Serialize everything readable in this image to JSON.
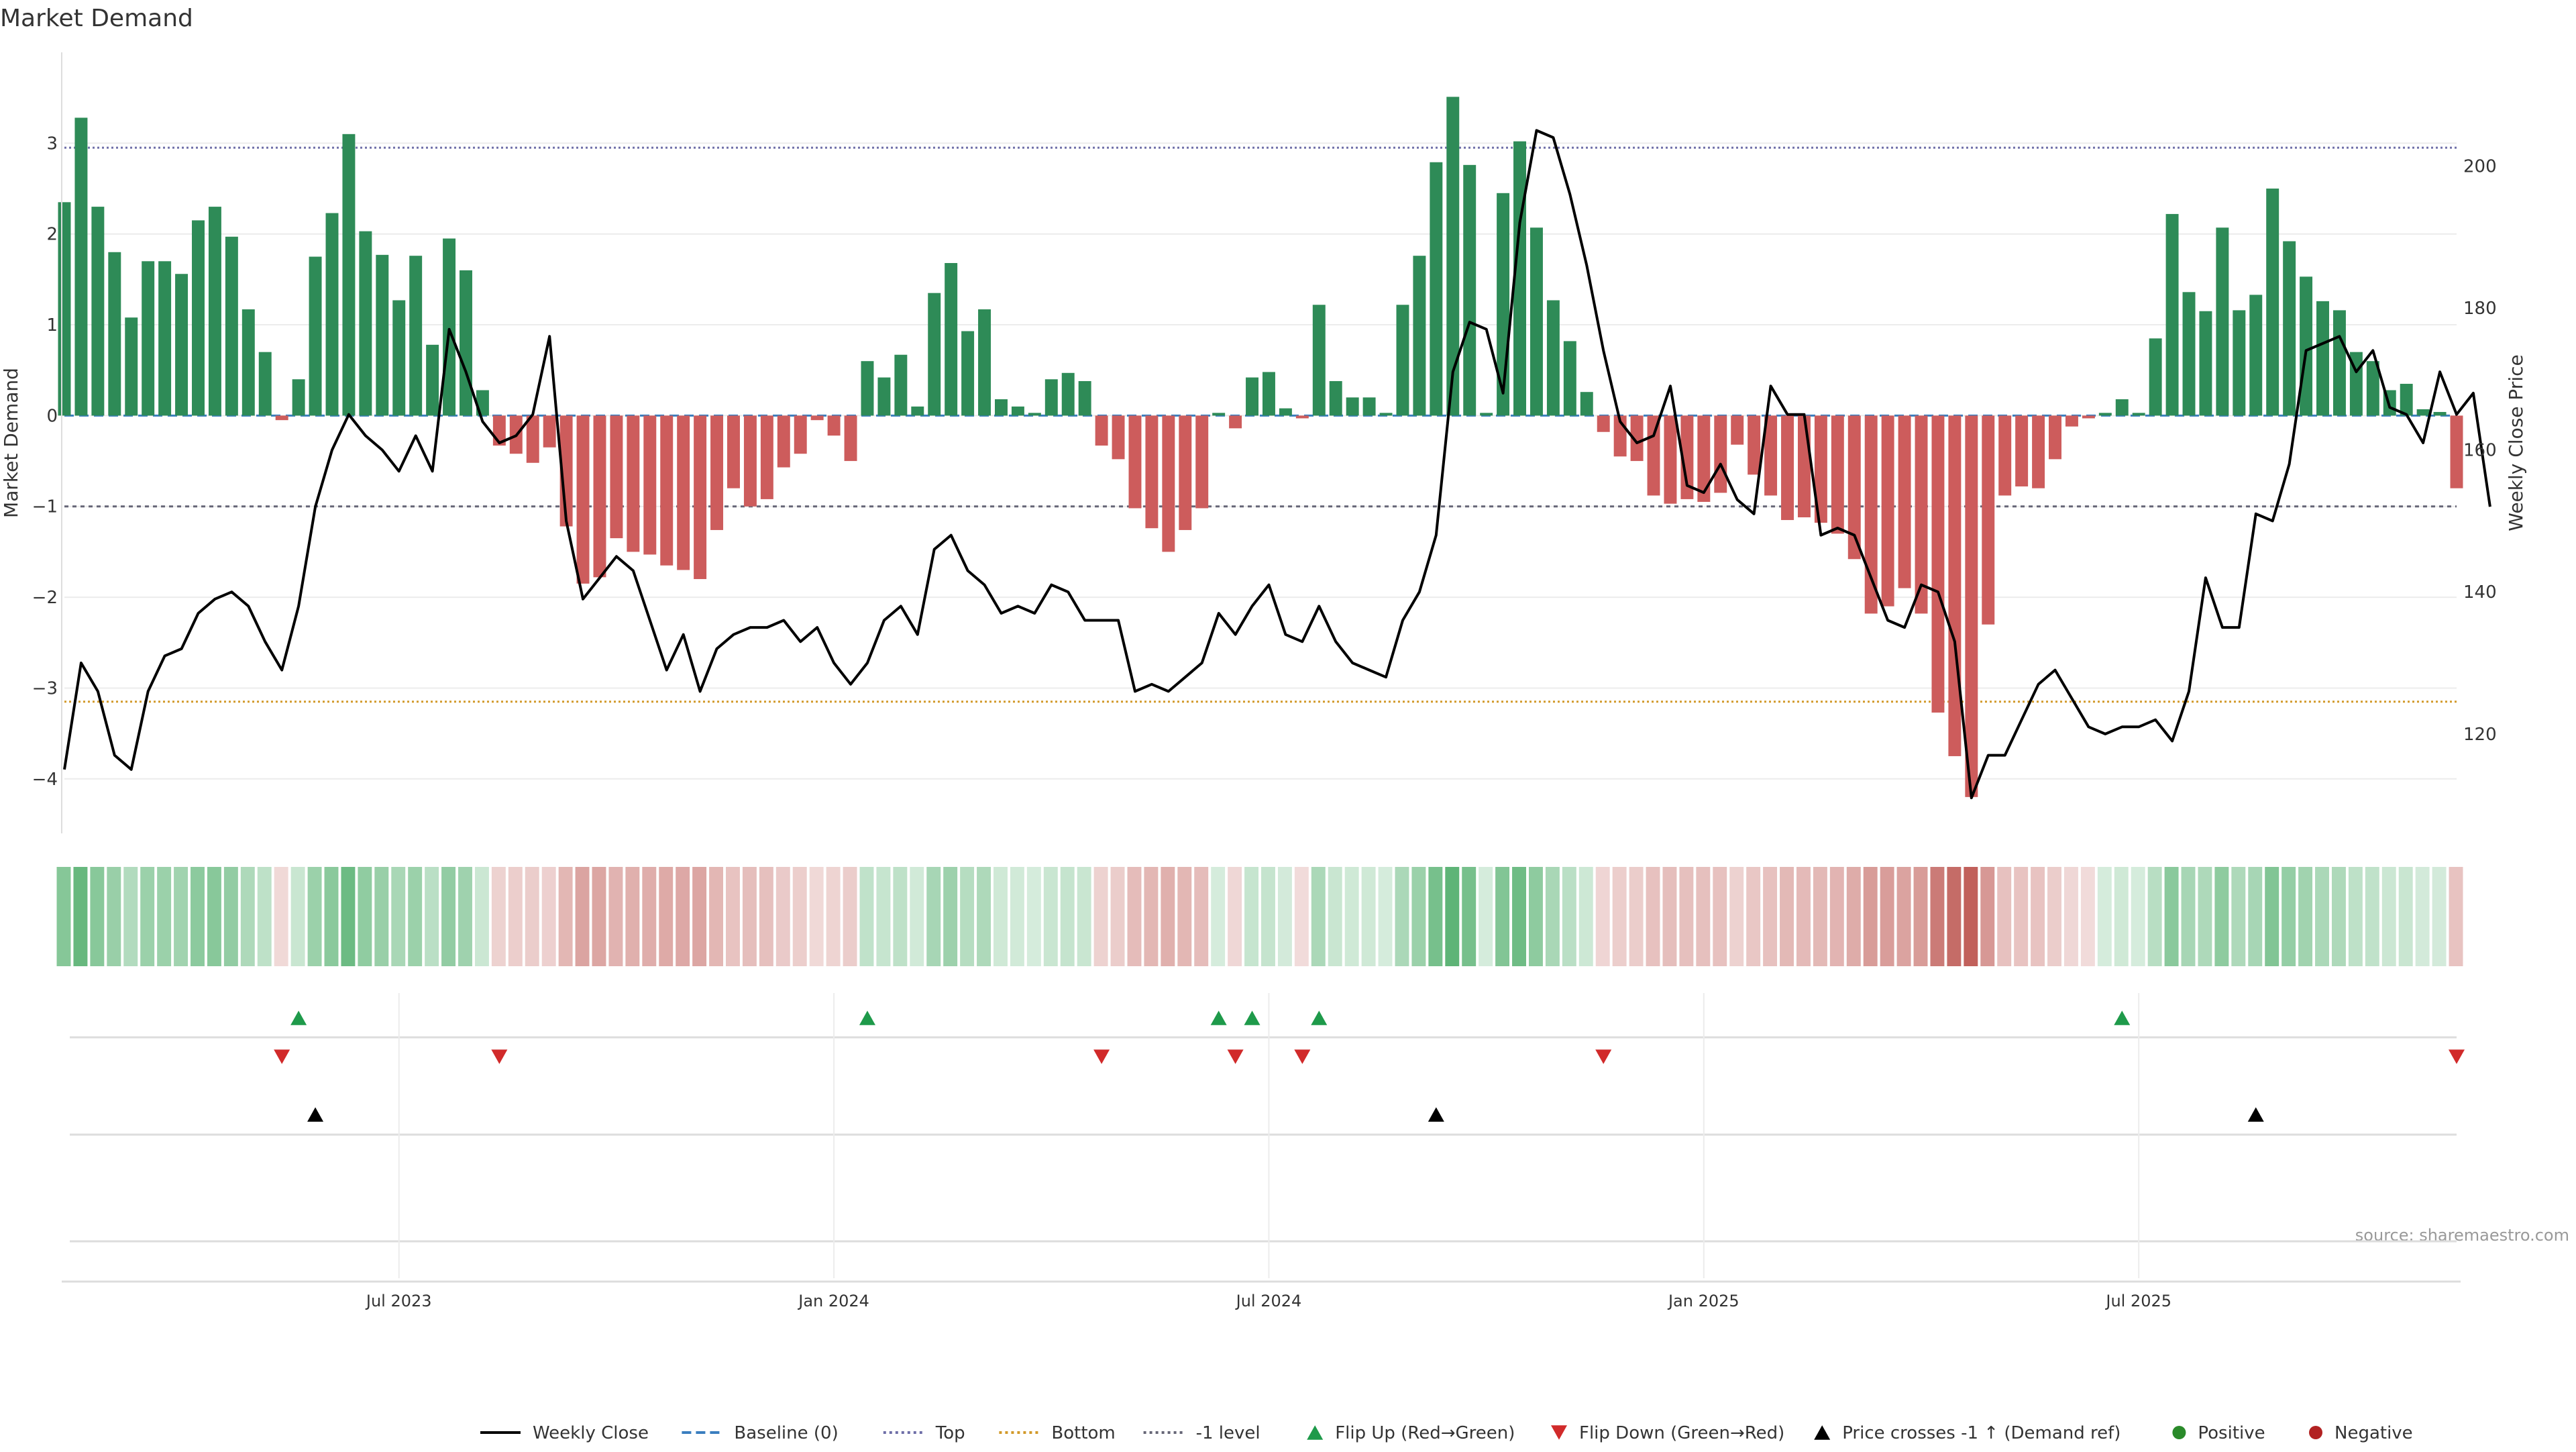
{
  "chart_data": {
    "type": "bar",
    "title": "Market Demand",
    "ylabel": "Market Demand",
    "y2label": "Weekly Close Price",
    "ylim": [
      -4.6,
      4.0
    ],
    "y2lim": [
      106,
      216
    ],
    "yticks": [
      3,
      2,
      1,
      0,
      -1,
      -2,
      -3,
      -4
    ],
    "yticklabels": [
      "3",
      "2",
      "1",
      "0",
      "−1",
      "−2",
      "−3",
      "−4"
    ],
    "y2ticks": [
      200,
      180,
      160,
      140,
      120
    ],
    "y2ticklabels": [
      "200",
      "180",
      "160",
      "140",
      "120"
    ],
    "xticks": [
      20,
      46,
      72,
      98,
      124
    ],
    "xticklabels": [
      "Jul 2023",
      "Jan 2024",
      "Jul 2024",
      "Jan 2025",
      "Jul 2025"
    ],
    "reference_lines": {
      "top": 2.95,
      "bottom": -3.15,
      "minus_one": -1.0,
      "baseline": 0
    },
    "demand": [
      2.35,
      3.28,
      2.3,
      1.8,
      1.08,
      1.7,
      1.7,
      1.56,
      2.15,
      2.3,
      1.97,
      1.17,
      0.7,
      -0.05,
      0.4,
      1.75,
      2.23,
      3.1,
      2.03,
      1.77,
      1.27,
      1.76,
      0.78,
      1.95,
      1.6,
      0.28,
      -0.33,
      -0.42,
      -0.52,
      -0.35,
      -1.22,
      -1.85,
      -1.78,
      -1.35,
      -1.5,
      -1.53,
      -1.65,
      -1.7,
      -1.8,
      -1.26,
      -0.8,
      -1.0,
      -0.92,
      -0.57,
      -0.42,
      -0.05,
      -0.22,
      -0.5,
      0.6,
      0.42,
      0.67,
      0.1,
      1.35,
      1.68,
      0.93,
      1.17,
      0.18,
      0.1,
      0.03,
      0.4,
      0.47,
      0.38,
      -0.33,
      -0.48,
      -1.02,
      -1.24,
      -1.5,
      -1.26,
      -1.02,
      0.03,
      -0.14,
      0.42,
      0.48,
      0.08,
      -0.03,
      1.22,
      0.38,
      0.2,
      0.2,
      0.03,
      1.22,
      1.76,
      2.79,
      3.51,
      2.76,
      0.03,
      2.45,
      3.02,
      2.07,
      1.27,
      0.82,
      0.26,
      -0.18,
      -0.45,
      -0.5,
      -0.88,
      -0.97,
      -0.92,
      -0.95,
      -0.85,
      -0.32,
      -0.65,
      -0.88,
      -1.15,
      -1.12,
      -1.18,
      -1.3,
      -1.58,
      -2.18,
      -2.1,
      -1.9,
      -2.18,
      -3.27,
      -3.75,
      -4.2,
      -2.3,
      -0.88,
      -0.78,
      -0.8,
      -0.48,
      -0.12,
      -0.03,
      0.03,
      0.18,
      0.03,
      0.85,
      2.22,
      1.36,
      1.15,
      2.07,
      1.16,
      1.33,
      2.5,
      1.92,
      1.53,
      1.26,
      1.16,
      0.7,
      0.6,
      0.28,
      0.35,
      0.07,
      0.04,
      -0.8
    ],
    "close": [
      115,
      130,
      126,
      117,
      115,
      126,
      131,
      132,
      137,
      139,
      140,
      138,
      133,
      129,
      138,
      152,
      160,
      165,
      162,
      160,
      157,
      162,
      157,
      177,
      171,
      164,
      161,
      162,
      165,
      176,
      150,
      139,
      142,
      145,
      143,
      136,
      129,
      134,
      126,
      132,
      134,
      135,
      135,
      136,
      133,
      135,
      130,
      127,
      130,
      136,
      138,
      134,
      146,
      148,
      143,
      141,
      137,
      138,
      137,
      141,
      140,
      136,
      136,
      136,
      126,
      127,
      126,
      128,
      130,
      137,
      134,
      138,
      141,
      134,
      133,
      138,
      133,
      130,
      129,
      128,
      136,
      140,
      148,
      171,
      178,
      177,
      168,
      192,
      205,
      204,
      196,
      186,
      174,
      164,
      161,
      162,
      169,
      155,
      154,
      158,
      153,
      151,
      169,
      165,
      165,
      148,
      149,
      148,
      142,
      136,
      135,
      141,
      140,
      133,
      111,
      117,
      117,
      122,
      127,
      129,
      125,
      121,
      120,
      121,
      121,
      122,
      119,
      126,
      142,
      135,
      135,
      151,
      150,
      158,
      174,
      175,
      176,
      171,
      174,
      166,
      165,
      161,
      171,
      165,
      168,
      152
    ],
    "flip_up": [
      14,
      48,
      69,
      71,
      75,
      123
    ],
    "flip_down": [
      13,
      26,
      62,
      70,
      74,
      92,
      143
    ],
    "price_cross": [
      15,
      82,
      131
    ],
    "source": "source: sharemaestro.com",
    "legend": [
      {
        "label": "Weekly Close",
        "kind": "line",
        "color": "#000000"
      },
      {
        "label": "Baseline (0)",
        "kind": "dashed",
        "color": "#3a7ebf"
      },
      {
        "label": "Top",
        "kind": "dotted",
        "color": "#6f6fa8"
      },
      {
        "label": "Bottom",
        "kind": "dotted",
        "color": "#d29a2a"
      },
      {
        "label": "-1 level",
        "kind": "dotted",
        "color": "#666677"
      },
      {
        "label": "Flip Up (Red→Green)",
        "kind": "up",
        "color": "#1e9a4a"
      },
      {
        "label": "Flip Down (Green→Red)",
        "kind": "down",
        "color": "#d12a2a"
      },
      {
        "label": "Price crosses -1 ↑ (Demand ref)",
        "kind": "up",
        "color": "#000000"
      },
      {
        "label": "Positive",
        "kind": "dot",
        "color": "#2a8a2a"
      },
      {
        "label": "Negative",
        "kind": "dot",
        "color": "#b22222"
      }
    ],
    "colors": {
      "positive_bar": "#2e8b57",
      "negative_bar": "#cd5c5c",
      "pos_strip": "#2e9e4e",
      "neg_strip": "#b84a44"
    }
  }
}
